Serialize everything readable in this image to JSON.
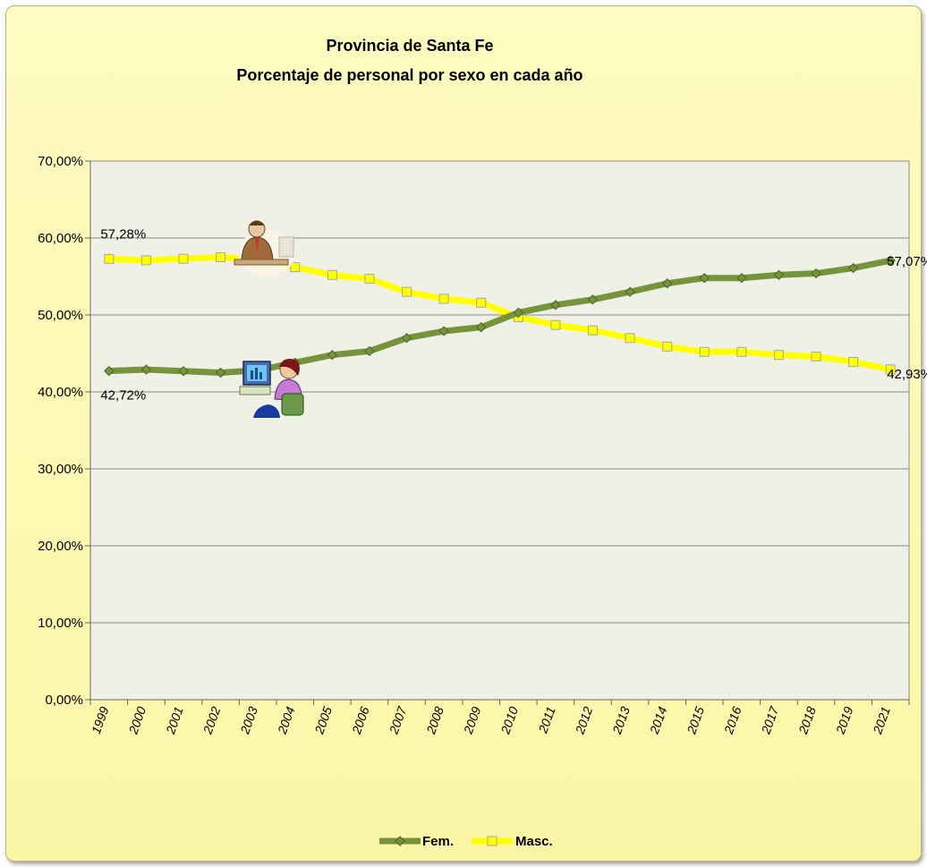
{
  "chart_data": {
    "type": "line",
    "title": "Provincia de Santa Fe",
    "subtitle": "Porcentaje de personal por sexo en cada año",
    "xlabel": "",
    "ylabel": "",
    "ylim": [
      0,
      70
    ],
    "y_ticks": [
      "0,00%",
      "10,00%",
      "20,00%",
      "30,00%",
      "40,00%",
      "50,00%",
      "60,00%",
      "70,00%"
    ],
    "categories": [
      "1999",
      "2000",
      "2001",
      "2002",
      "2003",
      "2004",
      "2005",
      "2006",
      "2007",
      "2008",
      "2009",
      "2010",
      "2011",
      "2012",
      "2013",
      "2014",
      "2015",
      "2016",
      "2017",
      "2018",
      "2019",
      "2021"
    ],
    "series": [
      {
        "name": "Fem.",
        "color": "#77933c",
        "values": [
          42.72,
          42.9,
          42.7,
          42.5,
          42.8,
          43.8,
          44.8,
          45.3,
          47.0,
          47.9,
          48.4,
          50.3,
          51.3,
          52.0,
          53.0,
          54.1,
          54.8,
          54.8,
          55.2,
          55.4,
          56.1,
          57.07
        ]
      },
      {
        "name": "Masc.",
        "color": "#ffff00",
        "values": [
          57.28,
          57.1,
          57.3,
          57.5,
          57.2,
          56.2,
          55.2,
          54.7,
          53.0,
          52.1,
          51.6,
          49.7,
          48.7,
          48.0,
          47.0,
          45.9,
          45.2,
          45.2,
          44.8,
          44.6,
          43.9,
          42.93
        ]
      }
    ],
    "data_labels": [
      {
        "text": "57,28%",
        "series": 1,
        "index": 0
      },
      {
        "text": "42,72%",
        "series": 0,
        "index": 0
      },
      {
        "text": "57,07%",
        "series": 0,
        "index": 21
      },
      {
        "text": "42,93%",
        "series": 1,
        "index": 21
      }
    ],
    "grid": true,
    "legend_position": "bottom",
    "background_color": "#fdf9b3",
    "plot_background_color": "#eff1e6",
    "icons": [
      "man-at-desk-icon",
      "woman-at-computer-icon"
    ]
  }
}
